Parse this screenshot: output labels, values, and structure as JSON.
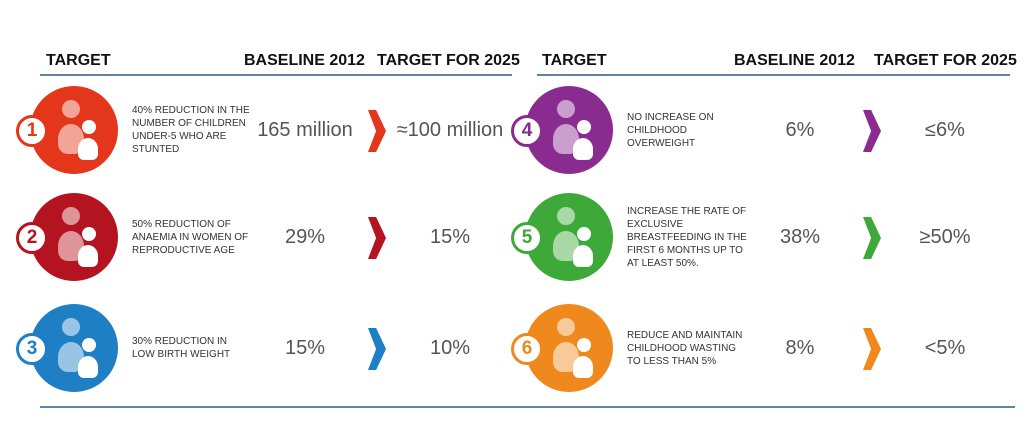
{
  "headers": {
    "left": {
      "target": "TARGET",
      "baseline": "BASELINE 2012",
      "target2025": "TARGET FOR 2025"
    },
    "right": {
      "target": "TARGET",
      "baseline": "BASELINE 2012",
      "target2025": "TARGET FOR 2025"
    }
  },
  "targets": [
    {
      "number": "1",
      "icon": "children-stunting-icon",
      "color": "#e4361b",
      "description": "40% reduction in the number of children under-5 who are stunted",
      "baseline": "165 million",
      "target": "≈100 million"
    },
    {
      "number": "2",
      "icon": "blood-drops-icon",
      "color": "#b3141f",
      "description": "50% reduction of anaemia in women of reproductive age",
      "baseline": "29%",
      "target": "15%"
    },
    {
      "number": "3",
      "icon": "baby-in-hand-icon",
      "color": "#1e7fc4",
      "description": "30% reduction in low birth weight",
      "baseline": "15%",
      "target": "10%"
    },
    {
      "number": "4",
      "icon": "overweight-child-icon",
      "color": "#8a2b8f",
      "description": "No increase on childhood overweight",
      "baseline": "6%",
      "target": "≤6%"
    },
    {
      "number": "5",
      "icon": "breastfeeding-icon",
      "color": "#3da938",
      "description": "Increase the rate of exclusive breastfeeding in the first 6 months up to at least 50%.",
      "baseline": "38%",
      "target": "≥50%"
    },
    {
      "number": "6",
      "icon": "child-wasting-icon",
      "color": "#f0891d",
      "description": "Reduce and maintain childhood wasting to less than 5%",
      "baseline": "8%",
      "target": "<5%"
    }
  ]
}
